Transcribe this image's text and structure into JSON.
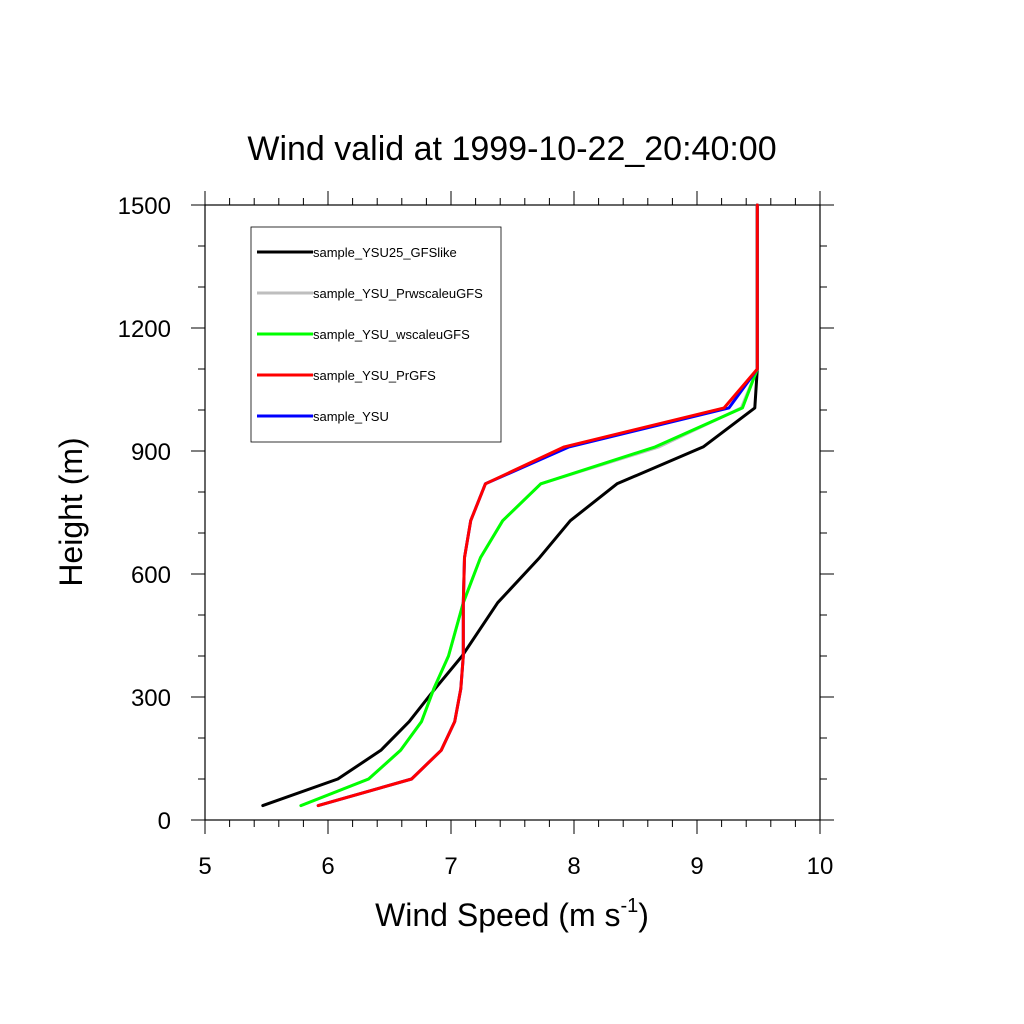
{
  "chart_data": {
    "type": "line",
    "title": "Wind valid at 1999-10-22_20:40:00",
    "xlabel": {
      "text": "Wind Speed (m s",
      "superscript": "-1",
      "suffix": ")"
    },
    "ylabel": "Height (m)",
    "xlim": [
      5,
      10
    ],
    "ylim": [
      0,
      1500
    ],
    "x_ticks": [
      5,
      6,
      7,
      8,
      9,
      10
    ],
    "y_ticks": [
      0,
      300,
      600,
      900,
      1200,
      1500
    ],
    "x_tick_labels": [
      "5",
      "6",
      "7",
      "8",
      "9",
      "10"
    ],
    "y_tick_labels": [
      "0",
      "300",
      "600",
      "900",
      "1200",
      "1500"
    ],
    "grid": false,
    "legend_position": "top-left",
    "series": [
      {
        "name": "sample_YSU25_GFSlike",
        "color": "#000000",
        "points": [
          [
            5.47,
            35
          ],
          [
            6.08,
            100
          ],
          [
            6.43,
            170
          ],
          [
            6.66,
            240
          ],
          [
            6.87,
            320
          ],
          [
            7.09,
            400
          ],
          [
            7.38,
            530
          ],
          [
            7.72,
            640
          ],
          [
            7.97,
            730
          ],
          [
            8.35,
            820
          ],
          [
            9.05,
            910
          ],
          [
            9.47,
            1005
          ],
          [
            9.49,
            1100
          ],
          [
            9.49,
            1500
          ]
        ]
      },
      {
        "name": "sample_YSU_PrwscaleuGFS",
        "color": "#bebebe",
        "points": [
          [
            5.78,
            35
          ],
          [
            6.33,
            100
          ],
          [
            6.59,
            170
          ],
          [
            6.76,
            240
          ],
          [
            6.86,
            320
          ],
          [
            6.98,
            400
          ],
          [
            7.1,
            530
          ],
          [
            7.24,
            640
          ],
          [
            7.42,
            730
          ],
          [
            7.73,
            820
          ],
          [
            8.69,
            910
          ],
          [
            9.36,
            1005
          ],
          [
            9.49,
            1100
          ],
          [
            9.49,
            1500
          ]
        ]
      },
      {
        "name": "sample_YSU_wscaleuGFS",
        "color": "#00ff00",
        "points": [
          [
            5.78,
            35
          ],
          [
            6.33,
            100
          ],
          [
            6.59,
            170
          ],
          [
            6.76,
            240
          ],
          [
            6.86,
            320
          ],
          [
            6.98,
            400
          ],
          [
            7.1,
            530
          ],
          [
            7.24,
            640
          ],
          [
            7.42,
            730
          ],
          [
            7.73,
            820
          ],
          [
            8.66,
            910
          ],
          [
            9.37,
            1005
          ],
          [
            9.49,
            1100
          ],
          [
            9.49,
            1500
          ]
        ]
      },
      {
        "name": "sample_YSU_PrGFS",
        "color": "#ff0000",
        "points": [
          [
            5.92,
            35
          ],
          [
            6.68,
            100
          ],
          [
            6.92,
            170
          ],
          [
            7.03,
            240
          ],
          [
            7.08,
            320
          ],
          [
            7.1,
            400
          ],
          [
            7.1,
            530
          ],
          [
            7.11,
            640
          ],
          [
            7.16,
            730
          ],
          [
            7.28,
            820
          ],
          [
            7.92,
            910
          ],
          [
            9.22,
            1005
          ],
          [
            9.49,
            1100
          ],
          [
            9.49,
            1500
          ]
        ]
      },
      {
        "name": "sample_YSU",
        "color": "#0000ff",
        "points": [
          [
            5.92,
            35
          ],
          [
            6.68,
            100
          ],
          [
            6.92,
            170
          ],
          [
            7.03,
            240
          ],
          [
            7.08,
            320
          ],
          [
            7.1,
            400
          ],
          [
            7.1,
            530
          ],
          [
            7.11,
            640
          ],
          [
            7.16,
            730
          ],
          [
            7.28,
            820
          ],
          [
            7.96,
            910
          ],
          [
            9.26,
            1005
          ],
          [
            9.49,
            1100
          ],
          [
            9.49,
            1500
          ]
        ]
      }
    ]
  }
}
